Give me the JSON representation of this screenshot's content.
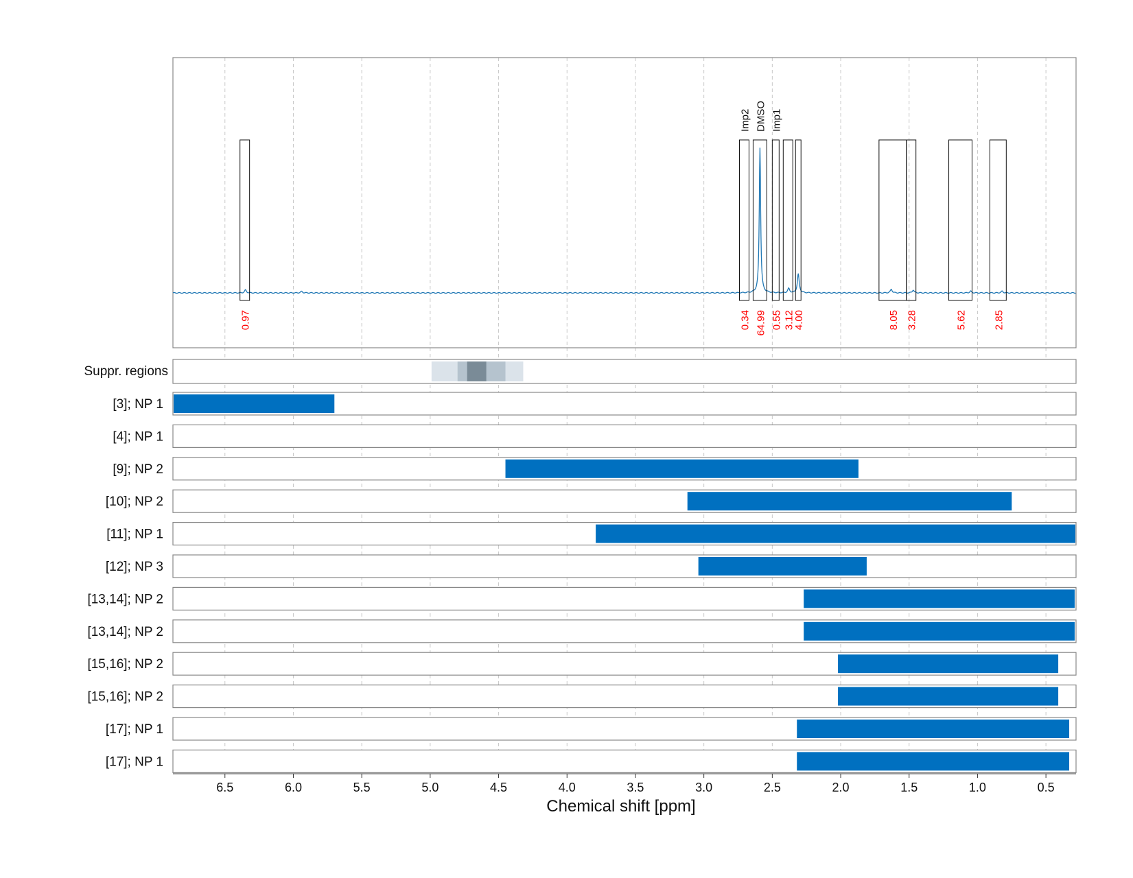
{
  "chart_data": {
    "type": "line",
    "xlabel": "Chemical shift [ppm]",
    "x_axis": {
      "reversed": true,
      "range": [
        6.88,
        0.28
      ],
      "ticks": [
        6.5,
        6.0,
        5.5,
        5.0,
        4.5,
        4.0,
        3.5,
        3.0,
        2.5,
        2.0,
        1.5,
        1.0,
        0.5
      ],
      "tick_labels": [
        "6.5",
        "6.0",
        "5.5",
        "5.0",
        "4.5",
        "4.0",
        "3.5",
        "3.0",
        "2.5",
        "2.0",
        "1.5",
        "1.0",
        "0.5"
      ],
      "grid": "dashed vertical"
    },
    "spectrum": {
      "color": "#1f77b4",
      "baseline": 0,
      "peak_max": 1.0,
      "peaks": [
        {
          "ppm": 6.35,
          "height": 0.02
        },
        {
          "ppm": 5.94,
          "height": 0.01
        },
        {
          "ppm": 2.59,
          "height": 1.0
        },
        {
          "ppm": 2.38,
          "height": 0.03
        },
        {
          "ppm": 2.31,
          "height": 0.13
        },
        {
          "ppm": 1.63,
          "height": 0.025
        },
        {
          "ppm": 1.47,
          "height": 0.02
        },
        {
          "ppm": 1.05,
          "height": 0.012
        },
        {
          "ppm": 0.82,
          "height": 0.012
        }
      ]
    },
    "integration_regions": [
      {
        "from": 6.39,
        "to": 6.32,
        "value": "0.97"
      },
      {
        "from": 2.74,
        "to": 2.67,
        "value": "0.34",
        "label": "Imp2"
      },
      {
        "from": 2.64,
        "to": 2.54,
        "value": "64.99",
        "label": "DMSO"
      },
      {
        "from": 2.5,
        "to": 2.45,
        "value": "0.55",
        "label": "Imp1"
      },
      {
        "from": 2.42,
        "to": 2.35,
        "value": "3.12"
      },
      {
        "from": 2.33,
        "to": 2.29,
        "value": "4.00"
      },
      {
        "from": 1.72,
        "to": 1.52,
        "value": "8.05"
      },
      {
        "from": 1.52,
        "to": 1.45,
        "value": "3.28"
      },
      {
        "from": 1.21,
        "to": 1.04,
        "value": "5.62"
      },
      {
        "from": 0.91,
        "to": 0.79,
        "value": "2.85"
      }
    ],
    "suppressed_regions": {
      "label": "Suppr. regions",
      "bands": [
        {
          "from": 4.99,
          "to": 4.32,
          "color": "#dbe3ea"
        },
        {
          "from": 4.8,
          "to": 4.45,
          "color": "#b5c3ce"
        },
        {
          "from": 4.73,
          "to": 4.59,
          "color": "#7a8b97"
        }
      ]
    },
    "assignments": [
      {
        "label": "[3]; NP 1",
        "from": 6.88,
        "to": 5.7
      },
      {
        "label": "[4]; NP 1",
        "from": null,
        "to": null
      },
      {
        "label": "[9]; NP 2",
        "from": 4.45,
        "to": 1.87
      },
      {
        "label": "[10]; NP 2",
        "from": 3.12,
        "to": 0.75
      },
      {
        "label": "[11]; NP 1",
        "from": 3.79,
        "to": 0.28
      },
      {
        "label": "[12]; NP 3",
        "from": 3.04,
        "to": 1.81
      },
      {
        "label": "[13,14]; NP 2",
        "from": 2.27,
        "to": 0.29
      },
      {
        "label": "[13,14]; NP 2",
        "from": 2.27,
        "to": 0.29
      },
      {
        "label": "[15,16]; NP 2",
        "from": 2.02,
        "to": 0.41
      },
      {
        "label": "[15,16]; NP 2",
        "from": 2.02,
        "to": 0.41
      },
      {
        "label": "[17]; NP 1",
        "from": 2.32,
        "to": 0.33
      },
      {
        "label": "[17]; NP 1",
        "from": 2.32,
        "to": 0.33
      }
    ],
    "colors": {
      "bar": "#0070c0",
      "integral_text": "#ff0000",
      "spectrum": "#1f77b4",
      "frame": "#888888",
      "grid": "#c8c8c8"
    }
  }
}
